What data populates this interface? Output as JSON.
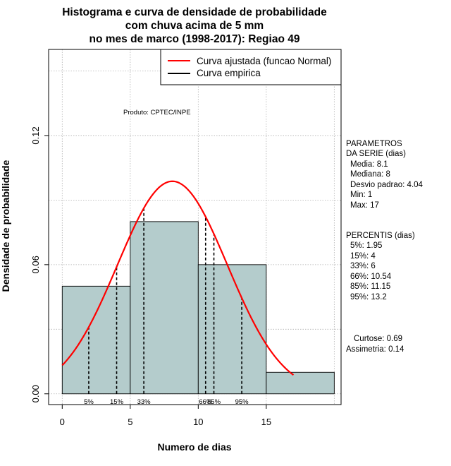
{
  "chart_data": {
    "type": "bar",
    "title_lines": [
      "Histograma e curva de densidade de probabilidade",
      "com chuva acima de 5 mm",
      "no mes de marco (1998-2017): Regiao 49"
    ],
    "xlabel": "Numero de dias",
    "ylabel": "Densidade de probabilidade",
    "xlim": [
      -1,
      20.5
    ],
    "ylim": [
      -0.005,
      0.16
    ],
    "x_ticks": [
      0,
      5,
      10,
      15
    ],
    "y_ticks": [
      0.0,
      0.06,
      0.12
    ],
    "y_tick_labels": [
      "0.00",
      "0.06",
      "0.12"
    ],
    "grid_y": [
      0.0,
      0.03,
      0.06,
      0.09,
      0.12,
      0.15
    ],
    "grid_x": [
      0,
      5,
      10,
      15,
      20
    ],
    "bins": [
      {
        "x0": 0,
        "x1": 5,
        "density": 0.05
      },
      {
        "x0": 5,
        "x1": 10,
        "density": 0.08
      },
      {
        "x0": 10,
        "x1": 15,
        "density": 0.06
      },
      {
        "x0": 15,
        "x1": 20,
        "density": 0.01
      }
    ],
    "normal_fit": {
      "mean": 8.1,
      "sd": 4.04,
      "x_from": 0,
      "x_to": 17
    },
    "percentile_lines": [
      {
        "label": "5%",
        "x": 1.95
      },
      {
        "label": "15%",
        "x": 4
      },
      {
        "label": "33%",
        "x": 6
      },
      {
        "label": "66%",
        "x": 10.54
      },
      {
        "label": "85%",
        "x": 11.15
      },
      {
        "label": "95%",
        "x": 13.2
      }
    ],
    "legend": {
      "position": "top-right",
      "entries": [
        {
          "label": "Curva ajustada (funcao Normal)",
          "color": "#ff0000"
        },
        {
          "label": "Curva empirica",
          "color": "#000000"
        }
      ]
    },
    "source_note": "Produto: CPTEC/INPE",
    "colors": {
      "bar_fill": "#b4cccc",
      "curve": "#ff0000",
      "grid": "#b0b0b0"
    }
  },
  "side_panel": {
    "params_title": [
      "PARAMETROS",
      "DA SERIE (dias)"
    ],
    "params": [
      "Media: 8.1",
      "Mediana: 8",
      "Desvio padrao: 4.04",
      "Min: 1",
      "Max: 17"
    ],
    "percentis_title": "PERCENTIS (dias)",
    "percentis": [
      "5%: 1.95",
      "15%: 4",
      "33%: 6",
      "66%: 10.54",
      "85%: 11.15",
      "95%: 13.2"
    ],
    "curtose": "Curtose: 0.69",
    "assimetria": "Assimetria: 0.14"
  }
}
